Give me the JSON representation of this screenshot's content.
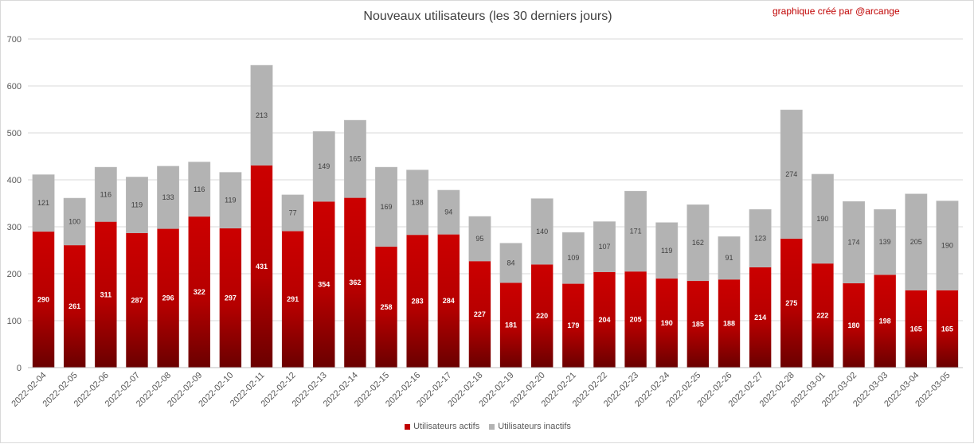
{
  "chart_data": {
    "type": "bar",
    "stacked": true,
    "title": "Nouveaux utilisateurs  (les 30 derniers  jours)",
    "credit": "graphique créé par @arcange",
    "categories": [
      "2022-02-04",
      "2022-02-05",
      "2022-02-06",
      "2022-02-07",
      "2022-02-08",
      "2022-02-09",
      "2022-02-10",
      "2022-02-11",
      "2022-02-12",
      "2022-02-13",
      "2022-02-14",
      "2022-02-15",
      "2022-02-16",
      "2022-02-17",
      "2022-02-18",
      "2022-02-19",
      "2022-02-20",
      "2022-02-21",
      "2022-02-22",
      "2022-02-23",
      "2022-02-24",
      "2022-02-25",
      "2022-02-26",
      "2022-02-27",
      "2022-02-28",
      "2022-03-01",
      "2022-03-02",
      "2022-03-03",
      "2022-03-04",
      "2022-03-05"
    ],
    "series": [
      {
        "name": "Utilisateurs actifs",
        "color": "#c00000",
        "values": [
          290,
          261,
          311,
          287,
          296,
          322,
          297,
          431,
          291,
          354,
          362,
          258,
          283,
          284,
          227,
          181,
          220,
          179,
          204,
          205,
          190,
          185,
          188,
          214,
          275,
          222,
          180,
          198,
          165,
          165
        ]
      },
      {
        "name": "Utilisateurs inactifs",
        "color": "#b3b3b3",
        "values": [
          121,
          100,
          116,
          119,
          133,
          116,
          119,
          213,
          77,
          149,
          165,
          169,
          138,
          94,
          95,
          84,
          140,
          109,
          107,
          171,
          119,
          162,
          91,
          123,
          274,
          190,
          174,
          139,
          205,
          190
        ]
      }
    ],
    "ylim": [
      0,
      700
    ],
    "yticks": [
      0,
      100,
      200,
      300,
      400,
      500,
      600,
      700
    ],
    "grid": true,
    "legend": "bottom"
  }
}
